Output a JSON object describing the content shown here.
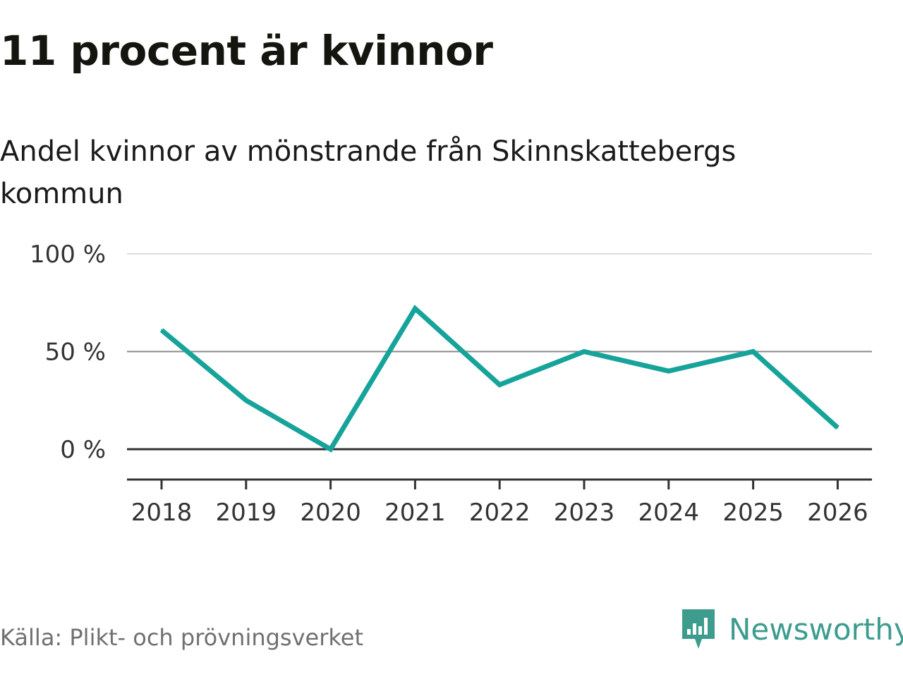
{
  "title": "11 procent är kvinnor",
  "subtitle": "Andel kvinnor av mönstrande från Skinnskattebergs kommun",
  "source": "Källa: Plikt- och prövningsverket",
  "brand": {
    "name": "Newsworthy",
    "icon": "newsworthy-logo-icon",
    "color": "#3d9c8e"
  },
  "colors": {
    "line": "#16a39a",
    "grid": "#dddddd",
    "grid_mid": "#888888",
    "zero": "#333333"
  },
  "chart_data": {
    "type": "line",
    "title": "11 procent är kvinnor",
    "subtitle": "Andel kvinnor av mönstrande från Skinnskattebergs kommun",
    "xlabel": "",
    "ylabel": "",
    "categories": [
      "2018",
      "2019",
      "2020",
      "2021",
      "2022",
      "2023",
      "2024",
      "2025",
      "2026"
    ],
    "series": [
      {
        "name": "Andel kvinnor",
        "values": [
          61,
          25,
          0,
          72,
          33,
          50,
          40,
          50,
          11
        ]
      }
    ],
    "ylim": [
      0,
      100
    ],
    "yticks": [
      0,
      50,
      100
    ],
    "ytick_labels": [
      "0 %",
      "50 %",
      "100 %"
    ],
    "grid": true
  }
}
